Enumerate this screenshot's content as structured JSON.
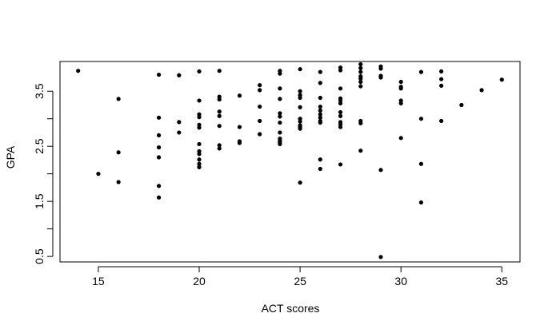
{
  "chart_data": {
    "type": "scatter",
    "title": "",
    "xlabel": "ACT scores",
    "ylabel": "GPA",
    "xlim": [
      13.1,
      35.9
    ],
    "ylim": [
      0.4,
      4.04
    ],
    "x_ticks": [
      15,
      20,
      25,
      30,
      35
    ],
    "x_tick_labels": [
      "15",
      "20",
      "25",
      "30",
      "35"
    ],
    "y_ticks": [
      0.5,
      1.0,
      1.5,
      2.0,
      2.5,
      3.0,
      3.5
    ],
    "y_tick_labels": [
      "0.5",
      "",
      "1.5",
      "",
      "2.5",
      "",
      "3.5"
    ],
    "grid": false,
    "legend": "none",
    "point_color": "#000000",
    "series": [
      {
        "x": [
          14,
          15,
          16,
          16,
          16,
          18,
          18,
          18,
          18,
          18,
          18,
          18,
          19,
          19,
          19,
          20,
          20,
          20,
          20,
          20,
          20,
          20,
          20,
          20,
          20,
          20,
          20,
          21,
          21,
          21,
          21,
          21,
          21,
          21,
          21,
          22,
          22,
          22,
          22,
          23,
          23,
          23,
          23,
          23,
          24,
          24,
          24,
          24,
          24,
          24,
          24,
          24,
          24,
          24,
          24,
          24,
          25,
          25,
          25,
          25,
          25,
          25,
          25,
          25,
          25,
          25,
          25,
          26,
          26,
          26,
          26,
          26,
          26,
          26,
          26,
          26,
          26,
          26,
          27,
          27,
          27,
          27,
          27,
          27,
          27,
          27,
          27,
          27,
          27,
          27,
          28,
          28,
          28,
          28,
          28,
          28,
          28,
          28,
          28,
          28,
          29,
          29,
          29,
          29,
          29,
          29,
          30,
          30,
          30,
          30,
          30,
          30,
          31,
          31,
          31,
          31,
          32,
          32,
          32,
          32,
          33,
          34,
          35
        ],
        "y": [
          3.87,
          2.0,
          3.36,
          2.39,
          1.85,
          3.8,
          3.02,
          2.7,
          2.48,
          2.3,
          1.78,
          1.57,
          3.79,
          2.94,
          2.75,
          3.86,
          3.33,
          3.08,
          3.03,
          2.89,
          2.84,
          2.54,
          2.41,
          2.36,
          2.26,
          2.18,
          2.12,
          3.87,
          3.4,
          3.35,
          3.13,
          3.05,
          2.87,
          2.52,
          2.46,
          3.42,
          2.85,
          2.59,
          2.56,
          3.61,
          3.52,
          3.22,
          2.96,
          2.72,
          3.87,
          3.82,
          3.55,
          3.36,
          3.1,
          3.04,
          2.93,
          2.75,
          2.64,
          2.6,
          2.57,
          2.54,
          3.9,
          3.5,
          3.43,
          3.38,
          3.21,
          3.0,
          2.95,
          2.88,
          2.85,
          2.82,
          1.84,
          3.85,
          3.65,
          3.38,
          3.22,
          3.15,
          3.08,
          3.02,
          2.96,
          2.93,
          2.26,
          2.09,
          3.93,
          3.88,
          3.55,
          3.37,
          3.33,
          3.28,
          3.12,
          3.05,
          2.94,
          2.9,
          2.85,
          2.17,
          3.99,
          3.92,
          3.85,
          3.77,
          3.73,
          3.67,
          3.59,
          2.96,
          2.92,
          2.42,
          3.95,
          3.91,
          3.78,
          3.75,
          2.07,
          0.49,
          3.67,
          3.58,
          3.55,
          3.33,
          3.28,
          2.65,
          3.85,
          3.0,
          2.18,
          1.48,
          3.86,
          3.72,
          3.6,
          2.96,
          3.25,
          3.52,
          3.71
        ]
      }
    ]
  }
}
